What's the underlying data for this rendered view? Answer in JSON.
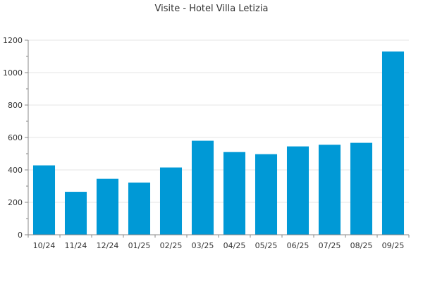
{
  "chart_data": {
    "type": "bar",
    "title": "Visite - Hotel Villa Letizia",
    "xlabel": "",
    "ylabel": "",
    "categories": [
      "10/24",
      "11/24",
      "12/24",
      "01/25",
      "02/25",
      "03/25",
      "04/25",
      "05/25",
      "06/25",
      "07/25",
      "08/25",
      "09/25"
    ],
    "values": [
      428,
      265,
      345,
      322,
      415,
      580,
      510,
      497,
      545,
      555,
      567,
      1130
    ],
    "ylim": [
      0,
      1200
    ],
    "yticks": [
      0,
      200,
      400,
      600,
      800,
      1000,
      1200
    ],
    "grid": true,
    "bar_color": "#0099d6",
    "gridline_color": "#e6e6e6",
    "axis_color": "#888888"
  }
}
